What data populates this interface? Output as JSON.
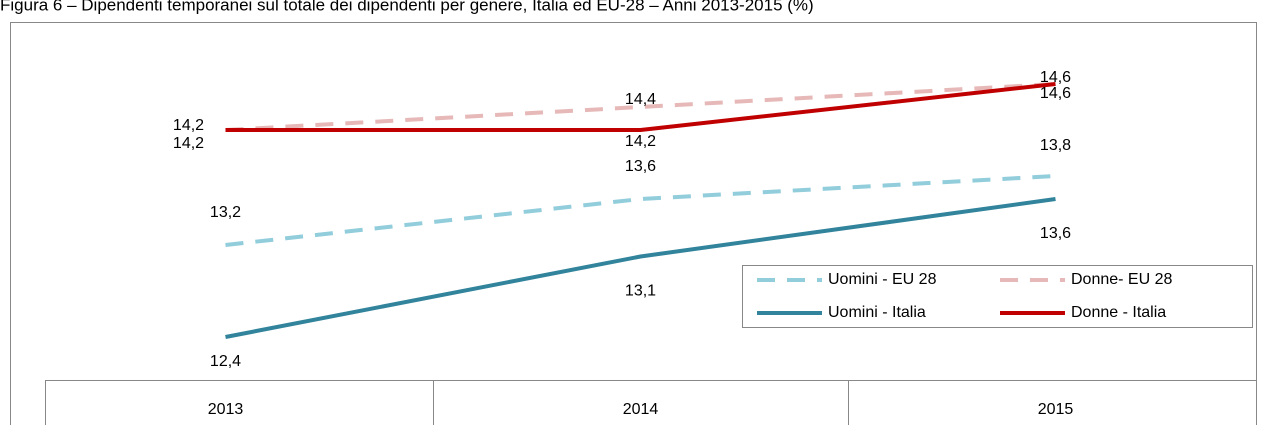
{
  "chart_data": {
    "type": "line",
    "title": "Figura 6 – Dipendenti temporanei sul totale dei dipendenti per genere, Italia ed EU-28 – Anni 2013-2015 (%)",
    "categories": [
      "2013",
      "2014",
      "2015"
    ],
    "series": [
      {
        "name": "Uomini - EU 28",
        "color": "#92cddc",
        "dashed": true,
        "values": [
          13.2,
          13.6,
          13.8
        ],
        "value_labels": [
          "13,2",
          "13,6",
          "13,8"
        ]
      },
      {
        "name": "Donne- EU 28",
        "color": "#e6b9b8",
        "dashed": true,
        "values": [
          14.2,
          14.4,
          14.6
        ],
        "value_labels": [
          "14,2",
          "14,4",
          "14,6"
        ]
      },
      {
        "name": "Uomini - Italia",
        "color": "#31849b",
        "dashed": false,
        "values": [
          12.4,
          13.1,
          13.6
        ],
        "value_labels": [
          "12,4",
          "13,1",
          "13,6"
        ]
      },
      {
        "name": "Donne - Italia",
        "color": "#c00000",
        "dashed": false,
        "values": [
          14.2,
          14.2,
          14.6
        ],
        "value_labels": [
          "14,2",
          "14,2",
          "14,6"
        ]
      }
    ]
  }
}
